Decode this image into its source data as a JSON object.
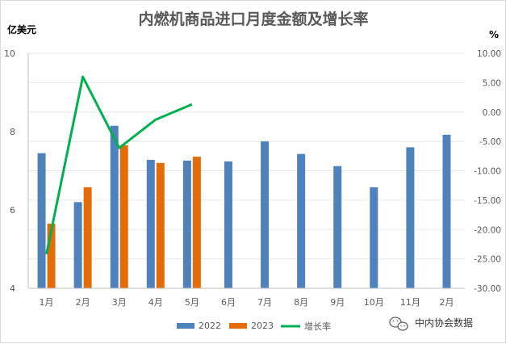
{
  "chart_data": {
    "type": "bar",
    "title": "内燃机商品进口月度金额及增长率",
    "y_left_unit": "亿美元",
    "y_right_unit": "%",
    "categories": [
      "1月",
      "2月",
      "3月",
      "4月",
      "5月",
      "6月",
      "7月",
      "8月",
      "9月",
      "10月",
      "11月",
      "2月"
    ],
    "y_left_ticks": [
      "4",
      "6",
      "8",
      "10"
    ],
    "y_left_range": [
      4,
      10
    ],
    "y_right_ticks": [
      "10.00",
      "5.00",
      "0.00",
      "-5.00",
      "-10.00",
      "-15.00",
      "-20.00",
      "-25.00",
      "-30.00"
    ],
    "y_right_range": [
      -30,
      10
    ],
    "series": [
      {
        "name": "2022",
        "type": "bar",
        "color": "#4F81BD",
        "values": [
          7.45,
          6.2,
          8.15,
          7.28,
          7.26,
          7.24,
          7.75,
          7.43,
          7.12,
          6.58,
          7.6,
          7.92
        ]
      },
      {
        "name": "2023",
        "type": "bar",
        "color": "#E36C09",
        "values": [
          5.65,
          6.58,
          7.65,
          7.2,
          7.36,
          null,
          null,
          null,
          null,
          null,
          null,
          null
        ]
      },
      {
        "name": "增长率",
        "type": "line",
        "color": "#00B050",
        "axis": "right",
        "values": [
          -24.2,
          6.0,
          -6.1,
          -1.3,
          1.3,
          null,
          null,
          null,
          null,
          null,
          null,
          null
        ]
      }
    ],
    "legend_position": "bottom",
    "grid": "horizontal"
  },
  "watermark": {
    "icon": "wechat-icon",
    "text": "中内协会数据"
  }
}
